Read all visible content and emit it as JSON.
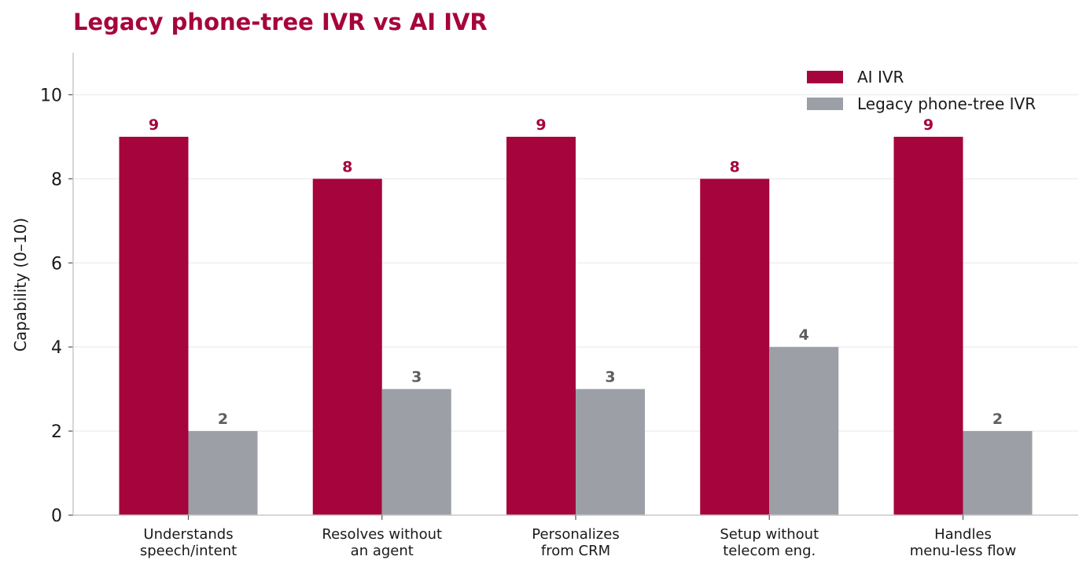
{
  "chart_data": {
    "type": "bar",
    "title": "Legacy phone-tree IVR vs AI IVR",
    "ylabel": "Capability (0–10)",
    "xlabel": "",
    "ylim": [
      0,
      11
    ],
    "yticks": [
      0,
      2,
      4,
      6,
      8,
      10
    ],
    "grid": "horizontal",
    "legend_position": "top-right",
    "categories": [
      [
        "Understands",
        "speech/intent"
      ],
      [
        "Resolves without",
        "an agent"
      ],
      [
        "Personalizes",
        "from CRM"
      ],
      [
        "Setup without",
        "telecom eng."
      ],
      [
        "Handles",
        "menu-less flow"
      ]
    ],
    "series": [
      {
        "name": "AI IVR",
        "values": [
          9,
          8,
          9,
          8,
          9
        ],
        "color": "#a6043c",
        "label_color": "#a6043c"
      },
      {
        "name": "Legacy phone-tree IVR",
        "values": [
          2,
          3,
          3,
          4,
          2
        ],
        "color": "#9ca0a6",
        "label_color": "#5e5e5e"
      }
    ],
    "colors": {
      "title": "#a6043c",
      "axis": "#c8c8c8",
      "grid": "#efefef"
    }
  }
}
